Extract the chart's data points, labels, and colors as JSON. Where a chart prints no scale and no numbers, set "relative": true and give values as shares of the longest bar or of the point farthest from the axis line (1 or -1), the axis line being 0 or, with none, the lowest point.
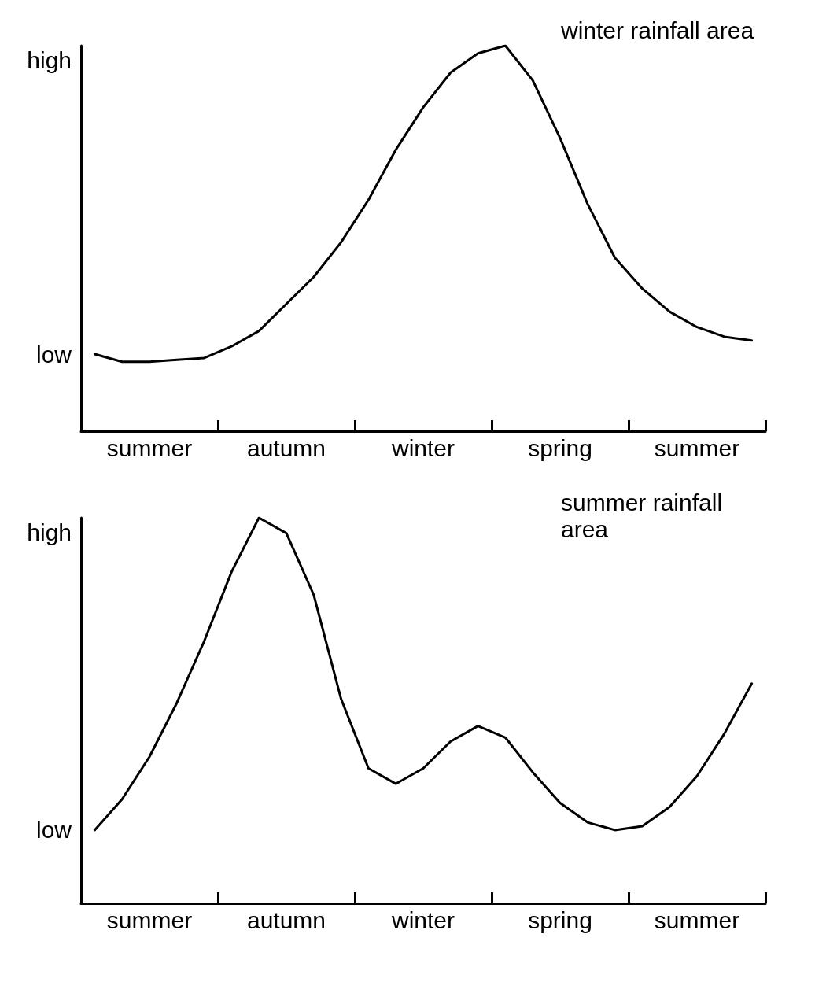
{
  "chart_data": [
    {
      "type": "line",
      "title": "winter rainfall area",
      "relative": true,
      "categories": [
        null,
        null,
        "summer",
        null,
        null,
        null,
        null,
        "autumn",
        null,
        null,
        null,
        null,
        "winter",
        null,
        null,
        null,
        null,
        "spring",
        null,
        null,
        null,
        null,
        "summer",
        null,
        null
      ],
      "line_style": "solid",
      "marker": "none",
      "grid": false,
      "annotations": [
        "high",
        "low"
      ],
      "series": [
        {
          "color": "#000000",
          "values": [
            0.2,
            0.18,
            0.18,
            0.185,
            0.19,
            0.22,
            0.26,
            0.33,
            0.4,
            0.49,
            0.6,
            0.73,
            0.84,
            0.93,
            0.98,
            1.0,
            0.91,
            0.76,
            0.59,
            0.45,
            0.37,
            0.31,
            0.27,
            0.245,
            0.235
          ]
        }
      ]
    },
    {
      "type": "line",
      "title": "summer rainfall area",
      "relative": true,
      "categories": [
        null,
        null,
        "summer",
        null,
        null,
        null,
        null,
        "autumn",
        null,
        null,
        null,
        null,
        "winter",
        null,
        null,
        null,
        null,
        "spring",
        null,
        null,
        null,
        null,
        "summer",
        null,
        null
      ],
      "line_style": "solid",
      "marker": "none",
      "grid": false,
      "annotations": [
        "high",
        "low"
      ],
      "series": [
        {
          "color": "#000000",
          "values": [
            0.19,
            0.27,
            0.38,
            0.52,
            0.68,
            0.86,
            1.0,
            0.96,
            0.8,
            0.53,
            0.35,
            0.31,
            0.35,
            0.42,
            0.46,
            0.43,
            0.34,
            0.26,
            0.21,
            0.19,
            0.2,
            0.25,
            0.33,
            0.44,
            0.57
          ]
        }
      ]
    }
  ]
}
